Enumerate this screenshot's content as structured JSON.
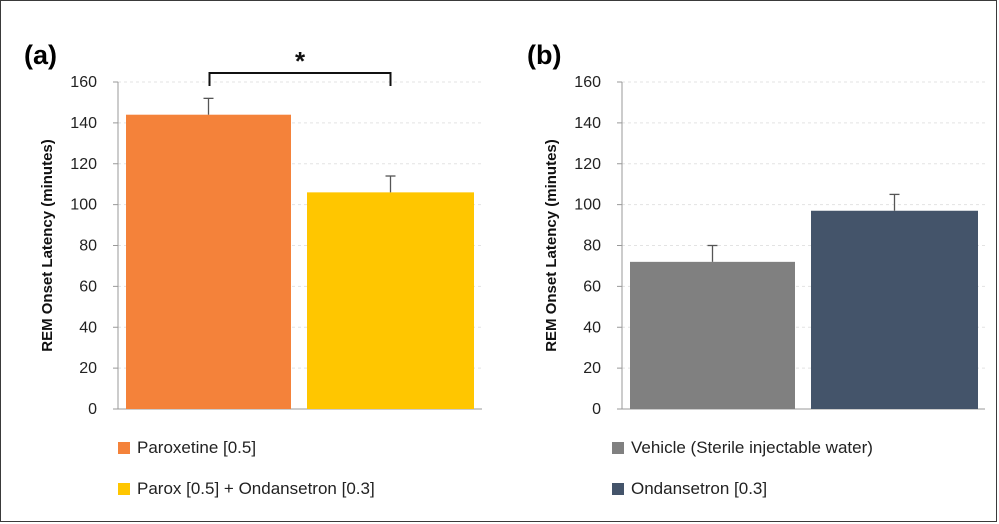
{
  "chart_data": [
    {
      "type": "bar",
      "panel_label": "(a)",
      "ylabel": "REM Onset Latency (minutes)",
      "ylim": [
        0,
        160
      ],
      "yticks": [
        0,
        20,
        40,
        60,
        80,
        100,
        120,
        140,
        160
      ],
      "grid": true,
      "legend_position": "bottom-left",
      "series": [
        {
          "name": "Paroxetine [0.5]",
          "value": 144,
          "error": 8,
          "color": "#F4823A"
        },
        {
          "name": "Parox [0.5] + Ondansetron [0.3]",
          "value": 106,
          "error": 8,
          "color": "#FFC600"
        }
      ],
      "annotation": {
        "text": "*",
        "between": [
          0,
          1
        ]
      }
    },
    {
      "type": "bar",
      "panel_label": "(b)",
      "ylabel": "REM Onset Latency (minutes)",
      "ylim": [
        0,
        160
      ],
      "yticks": [
        0,
        20,
        40,
        60,
        80,
        100,
        120,
        140,
        160
      ],
      "grid": true,
      "legend_position": "bottom-left",
      "series": [
        {
          "name": "Vehicle (Sterile injectable water)",
          "value": 72,
          "error": 8,
          "color": "#808080"
        },
        {
          "name": "Ondansetron [0.3]",
          "value": 97,
          "error": 8,
          "color": "#44546A"
        }
      ]
    }
  ]
}
